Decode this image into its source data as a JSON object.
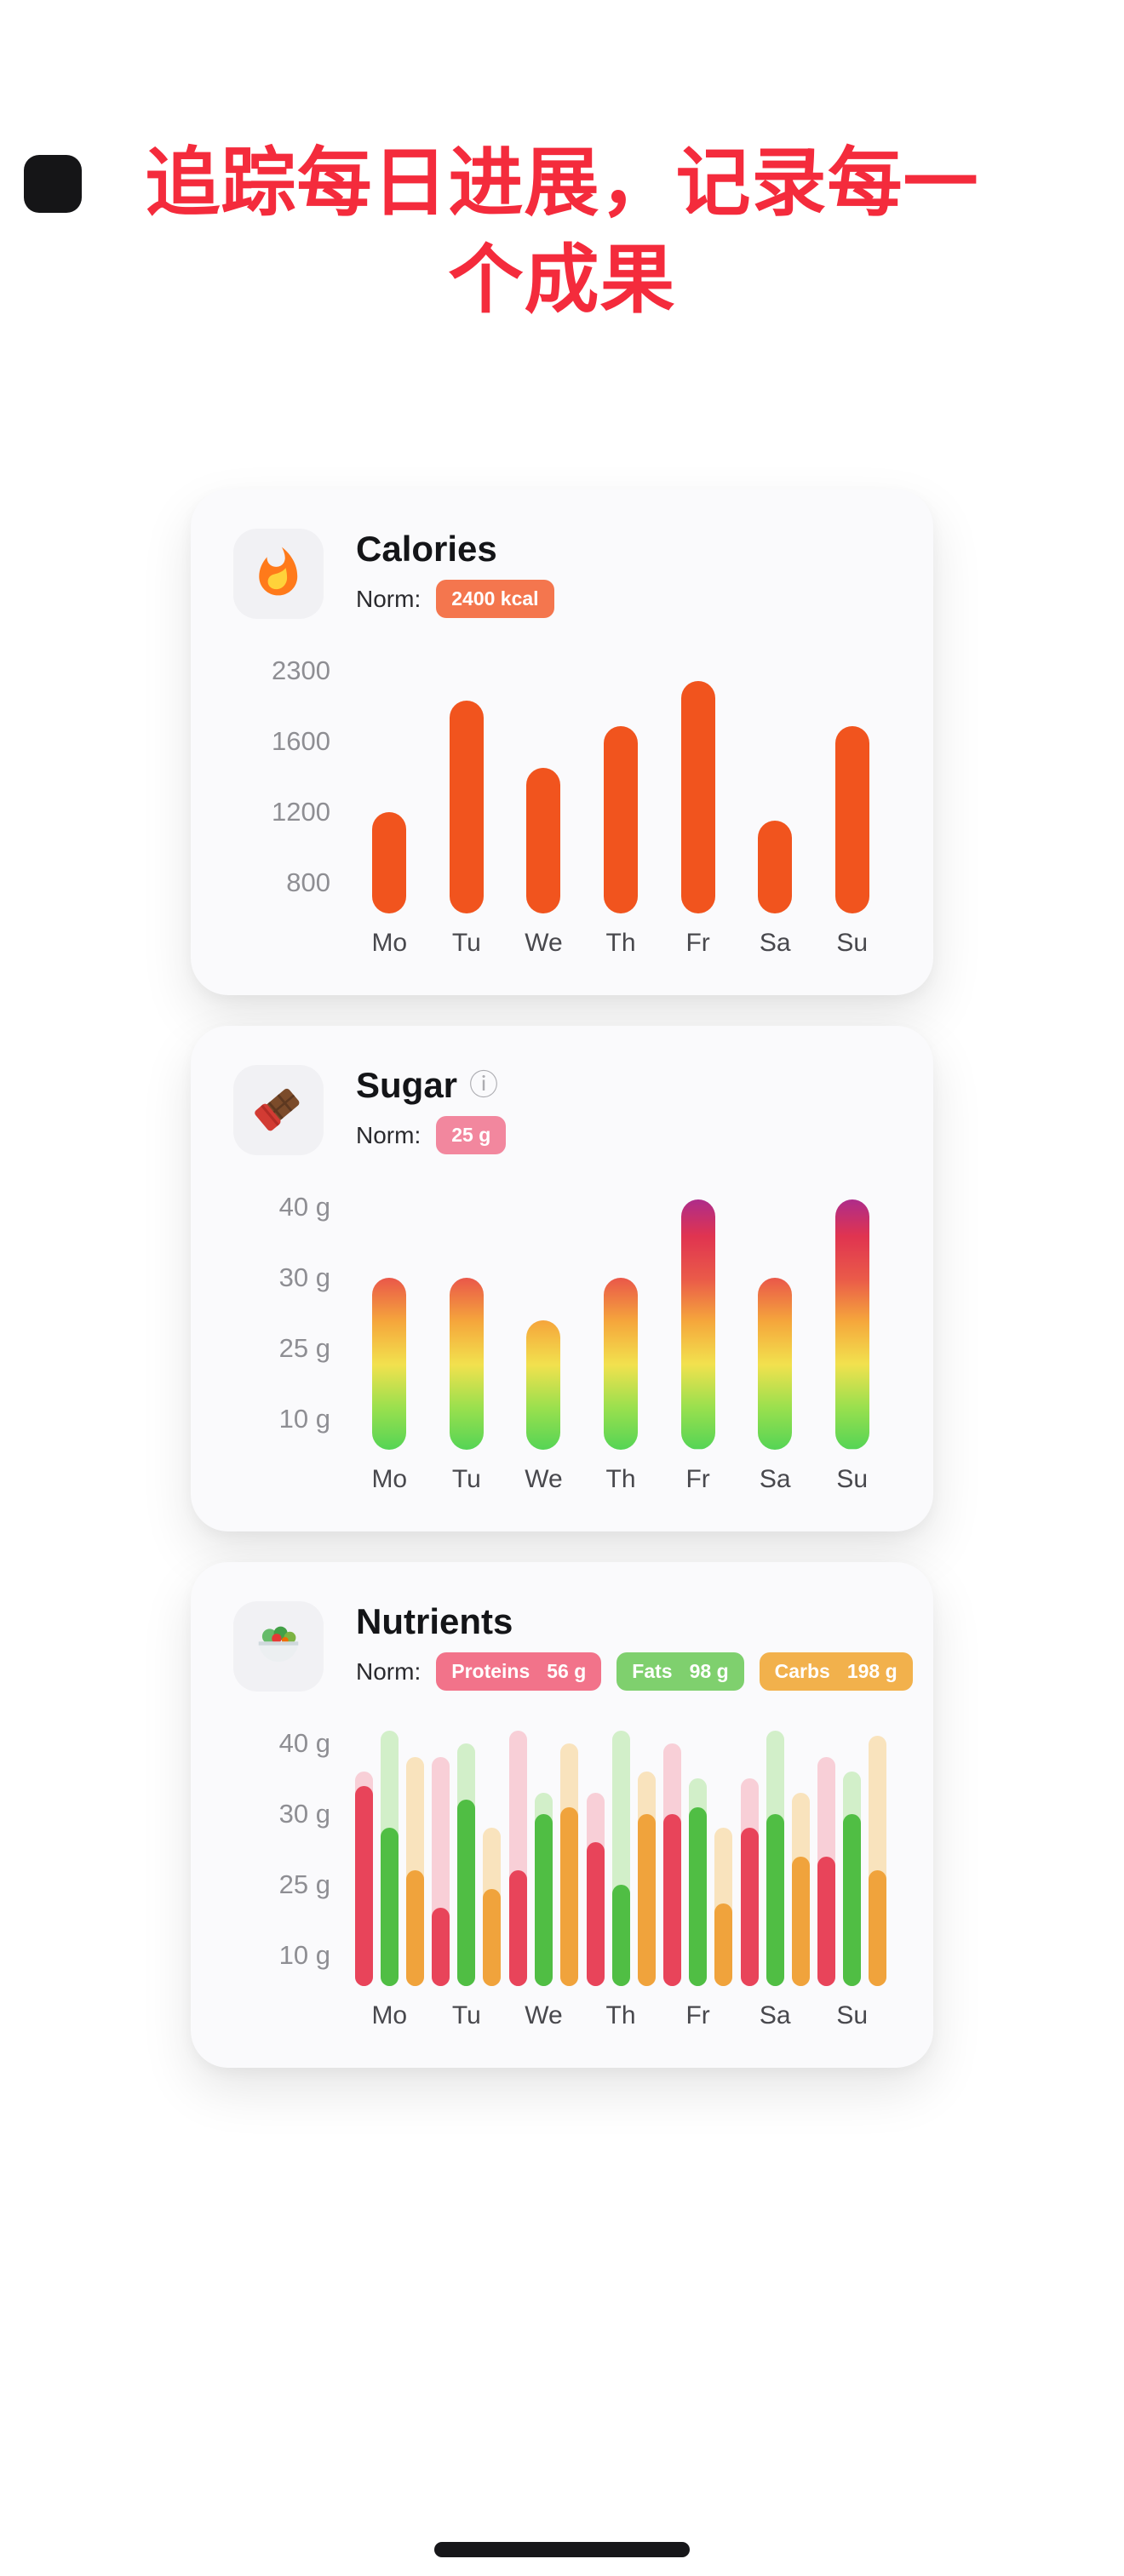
{
  "theme": {
    "headline_color": "#F42B3C",
    "background": "#FFFFFF",
    "card_background": "#FAFAFC"
  },
  "headline": {
    "line1": "追踪每日进展，记录每一",
    "line2": "个成果"
  },
  "cards": [
    {
      "title": "Calories",
      "icon": "flame-icon",
      "norm_label": "Norm:",
      "badges": [
        {
          "label": "2400 kcal",
          "color": "#F4764E"
        }
      ],
      "chart_data": {
        "type": "bar",
        "categories": [
          "Mo",
          "Tu",
          "We",
          "Th",
          "Fr",
          "Sa",
          "Su"
        ],
        "values": [
          1200,
          2000,
          1450,
          1750,
          2200,
          1150,
          1750
        ],
        "yticks": [
          2300,
          1600,
          1200,
          800
        ],
        "ytick_suffix": "",
        "bar_color": "#F1541E",
        "ylim": [
          0,
          2400
        ],
        "grid": false,
        "legend": "none"
      }
    },
    {
      "title": "Sugar",
      "icon": "chocolate-icon",
      "info_icon": "ⓘ",
      "norm_label": "Norm:",
      "badges": [
        {
          "label": "25 g",
          "color": "#F2879E"
        }
      ],
      "chart_data": {
        "type": "bar",
        "style": "gradient-bar",
        "categories": [
          "Mo",
          "Tu",
          "We",
          "Th",
          "Fr",
          "Sa",
          "Su"
        ],
        "values": [
          30,
          30,
          27,
          30,
          41,
          30,
          41
        ],
        "yticks": [
          40,
          30,
          25,
          10
        ],
        "ytick_suffix": " g",
        "gradient_bottom_to_top": [
          "#55D455",
          "#9BE04E",
          "#F2E14E",
          "#F5A73C",
          "#EA5A49",
          "#E03450",
          "#A62B93"
        ],
        "ylim": [
          0,
          43
        ],
        "grid": false,
        "legend": "none"
      }
    },
    {
      "title": "Nutrients",
      "icon": "salad-icon",
      "norm_label": "Norm:",
      "badges": [
        {
          "name": "Proteins",
          "value": "56 g",
          "color": "#F2738A"
        },
        {
          "name": "Fats",
          "value": "98 g",
          "color": "#7FD06E"
        },
        {
          "name": "Carbs",
          "value": "198 g",
          "color": "#F2B14C"
        }
      ],
      "chart_data": {
        "type": "bar",
        "style": "grouped-bar",
        "categories": [
          "Mo",
          "Tu",
          "We",
          "Th",
          "Fr",
          "Sa",
          "Su"
        ],
        "yticks": [
          40,
          30,
          25,
          10
        ],
        "ytick_suffix": " g",
        "series": [
          {
            "name": "Proteins",
            "color": "#E8445A",
            "pale_color": "#F8CFD7",
            "values": [
              34,
              20,
              26,
              28,
              30,
              29,
              27
            ],
            "cap_values": [
              36,
              38,
              42,
              33,
              40,
              35,
              38
            ]
          },
          {
            "name": "Fats",
            "color": "#50BE44",
            "pale_color": "#D2EFC9",
            "values": [
              29,
              32,
              30,
              25,
              31,
              30,
              30
            ],
            "cap_values": [
              42,
              40,
              33,
              42,
              35,
              42,
              36
            ]
          },
          {
            "name": "Carbs",
            "color": "#F0A33C",
            "pale_color": "#F9E3BD",
            "values": [
              26,
              24,
              31,
              30,
              21,
              27,
              26
            ],
            "cap_values": [
              38,
              29,
              40,
              36,
              29,
              33,
              41
            ]
          }
        ],
        "ylim": [
          0,
          43
        ],
        "grid": false,
        "legend": "none"
      }
    }
  ]
}
